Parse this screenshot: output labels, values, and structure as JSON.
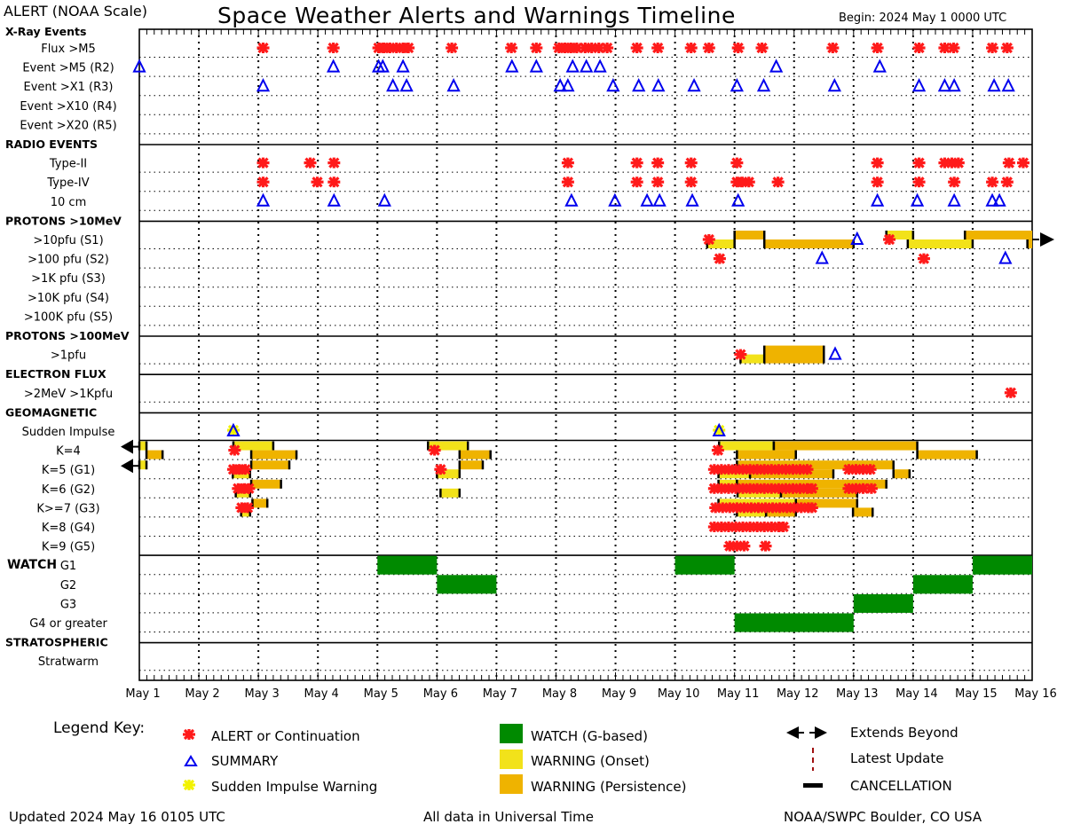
{
  "header": {
    "scale_label": "ALERT (NOAA Scale)",
    "title": "Space Weather Alerts and Warnings Timeline",
    "begin": "Begin: 2024 May 1 0000 UTC"
  },
  "footer": {
    "updated": "Updated 2024 May 16 0105 UTC",
    "timezone": "All data in Universal Time",
    "source": "NOAA/SWPC Boulder, CO USA"
  },
  "legend": {
    "title": "Legend Key:",
    "alert": "ALERT or Continuation",
    "summary": "SUMMARY",
    "si_warning": "Sudden Impulse Warning",
    "watch": "WATCH (G-based)",
    "onset": "WARNING (Onset)",
    "persistence": "WARNING (Persistence)",
    "extends": "Extends Beyond",
    "latest": "Latest Update",
    "cancel": "CANCELLATION"
  },
  "colors": {
    "alert": "#ff1a1a",
    "summary": "#0000ee",
    "si_warning": "#f2f200",
    "watch": "#008a00",
    "onset": "#f2e21a",
    "persistence": "#efb300",
    "latest": "#a01010"
  },
  "chart_data": {
    "type": "timeline",
    "title": "Space Weather Alerts and Warnings Timeline",
    "x_unit": "days since 2024 May 1 0000 UTC",
    "xlim": [
      0,
      15
    ],
    "x_tick_labels": [
      "May 1",
      "May 2",
      "May 3",
      "May 4",
      "May 5",
      "May 6",
      "May 7",
      "May 8",
      "May 9",
      "May 10",
      "May 11",
      "May 12",
      "May 13",
      "May 14",
      "May 15",
      "May 16"
    ],
    "grid": true,
    "watch_label": "WATCH",
    "top_header": "X-Ray Events",
    "rows": [
      {
        "label": "Flux >M5",
        "alerts": [
          2.08,
          3.26,
          4.02,
          4.11,
          4.21,
          4.32,
          4.43,
          4.52,
          5.25,
          6.25,
          6.67,
          7.05,
          7.15,
          7.25,
          7.35,
          7.49,
          7.6,
          7.72,
          7.86,
          8.36,
          8.71,
          9.27,
          9.57,
          10.06,
          10.46,
          11.65,
          12.4,
          13.1,
          13.53,
          13.68,
          14.33,
          14.58
        ]
      },
      {
        "label": "Event >M5 (R2)",
        "summaries": [
          0.0,
          3.26,
          4.02,
          4.09,
          4.43,
          6.26,
          6.67,
          7.28,
          7.51,
          7.74,
          10.7,
          12.44
        ]
      },
      {
        "label": "Event >X1 (R3)",
        "summaries": [
          2.08,
          4.26,
          4.49,
          5.28,
          7.07,
          7.2,
          7.96,
          8.39,
          8.72,
          9.32,
          10.04,
          10.49,
          11.68,
          13.1,
          13.53,
          13.69,
          14.36,
          14.6
        ]
      },
      {
        "label": "Event >X10 (R4)"
      },
      {
        "label": "Event >X20 (R5)"
      },
      {
        "label": "RADIO EVENTS",
        "header": true
      },
      {
        "label": "Type-II",
        "alerts": [
          2.08,
          2.87,
          3.27,
          7.2,
          8.36,
          8.71,
          9.27,
          10.04,
          12.4,
          13.1,
          13.53,
          13.65,
          13.76,
          14.61,
          14.85
        ]
      },
      {
        "label": "Type-IV",
        "alerts": [
          2.08,
          2.99,
          3.27,
          7.2,
          8.36,
          8.71,
          9.27,
          10.04,
          10.13,
          10.24,
          10.73,
          12.4,
          13.1,
          13.69,
          14.33,
          14.58
        ]
      },
      {
        "label": "10 cm",
        "summaries": [
          2.08,
          3.27,
          4.12,
          7.26,
          7.99,
          8.53,
          8.74,
          9.29,
          10.06,
          12.4,
          13.07,
          13.69,
          14.33,
          14.45
        ]
      },
      {
        "label": "PROTONS >10MeV",
        "header": true
      },
      {
        "label": ">10pfu (S1)",
        "alerts": [
          9.57,
          12.6
        ],
        "summaries": [
          12.06
        ],
        "bars": [
          [
            9.54,
            10.0,
            "onset",
            "lower"
          ],
          [
            10.0,
            10.5,
            "persistence",
            "upper"
          ],
          [
            10.5,
            12.0,
            "persistence",
            "lower"
          ],
          [
            12.55,
            13.0,
            "onset",
            "upper"
          ],
          [
            12.91,
            14.0,
            "onset",
            "lower"
          ],
          [
            13.87,
            15.0,
            "persistence",
            "upper"
          ],
          [
            14.92,
            15.0,
            "persistence",
            "lower"
          ]
        ],
        "extends_right": true
      },
      {
        "label": ">100 pfu (S2)",
        "alerts": [
          9.75,
          13.18
        ],
        "summaries": [
          11.47,
          14.55
        ]
      },
      {
        "label": ">1K pfu (S3)"
      },
      {
        "label": ">10K pfu (S4)"
      },
      {
        "label": ">100K pfu (S5)"
      },
      {
        "label": "PROTONS >100MeV",
        "header": true
      },
      {
        "label": ">1pfu",
        "alerts": [
          10.1
        ],
        "summaries": [
          11.69
        ],
        "bars": [
          [
            10.1,
            10.5,
            "onset",
            "lower"
          ],
          [
            10.5,
            11.5,
            "persistence",
            "full"
          ]
        ]
      },
      {
        "label": "ELECTRON FLUX",
        "header": true
      },
      {
        "label": ">2MeV >1Kpfu",
        "alerts": [
          14.64
        ]
      },
      {
        "label": "GEOMAGNETIC",
        "header": true
      },
      {
        "label": "Sudden Impulse",
        "si_warnings": [
          1.58,
          9.74
        ],
        "summaries": [
          1.58,
          9.74
        ]
      },
      {
        "label": "K=4",
        "alerts": [
          1.6,
          4.96,
          9.72
        ],
        "extends_left": true,
        "bars": [
          [
            0,
            0.12,
            "onset",
            "upper"
          ],
          [
            0.12,
            0.39,
            "persistence",
            "lower"
          ],
          [
            1.58,
            2.25,
            "onset",
            "upper"
          ],
          [
            1.88,
            2.64,
            "persistence",
            "lower"
          ],
          [
            4.85,
            5.52,
            "onset",
            "upper"
          ],
          [
            5.38,
            5.9,
            "persistence",
            "lower"
          ],
          [
            9.74,
            10.66,
            "onset",
            "upper"
          ],
          [
            10.66,
            13.07,
            "persistence",
            "upper"
          ],
          [
            10.04,
            11.03,
            "persistence",
            "lower"
          ],
          [
            13.07,
            14.07,
            "persistence",
            "lower"
          ]
        ]
      },
      {
        "label": "K=5 (G1)",
        "alerts": [
          1.58,
          1.68,
          1.78,
          5.06,
          9.66,
          9.78,
          9.9,
          10.02,
          10.14,
          10.26,
          10.38,
          10.5,
          10.62,
          10.74,
          10.86,
          10.98,
          11.1,
          11.22,
          11.92,
          12.04,
          12.16,
          12.28
        ],
        "extends_left": true,
        "bars": [
          [
            0,
            0.12,
            "onset",
            "upper"
          ],
          [
            1.88,
            2.52,
            "persistence",
            "upper"
          ],
          [
            1.57,
            1.86,
            "onset",
            "lower"
          ],
          [
            5.38,
            5.77,
            "persistence",
            "upper"
          ],
          [
            5.0,
            5.38,
            "onset",
            "lower"
          ],
          [
            10.04,
            12.67,
            "persistence",
            "upper"
          ],
          [
            9.73,
            10.26,
            "onset",
            "lower"
          ],
          [
            10.26,
            11.66,
            "persistence",
            "lower"
          ],
          [
            12.67,
            12.94,
            "persistence",
            "lower"
          ]
        ]
      },
      {
        "label": "K=6 (G2)",
        "alerts": [
          1.66,
          1.76,
          1.84,
          9.66,
          9.78,
          9.9,
          10.02,
          10.14,
          10.26,
          10.38,
          10.5,
          10.62,
          10.74,
          10.86,
          10.98,
          11.1,
          11.22,
          11.3,
          11.92,
          12.04,
          12.16,
          12.3
        ],
        "bars": [
          [
            1.88,
            2.38,
            "persistence",
            "upper"
          ],
          [
            1.62,
            1.86,
            "onset",
            "lower"
          ],
          [
            5.06,
            5.38,
            "onset",
            "lower"
          ],
          [
            9.73,
            10.04,
            "onset",
            "upper"
          ],
          [
            10.04,
            12.55,
            "persistence",
            "upper"
          ],
          [
            10.05,
            10.78,
            "onset",
            "lower"
          ],
          [
            10.78,
            12.06,
            "persistence",
            "lower"
          ]
        ]
      },
      {
        "label": "K>=7 (G3)",
        "alerts": [
          1.72,
          1.82,
          9.68,
          9.8,
          9.92,
          10.04,
          10.16,
          10.28,
          10.4,
          10.52,
          10.64,
          10.76,
          10.88,
          11.0,
          11.12,
          11.24,
          11.3
        ],
        "bars": [
          [
            1.9,
            2.15,
            "persistence",
            "upper"
          ],
          [
            1.71,
            1.86,
            "onset",
            "lower"
          ],
          [
            9.73,
            11.03,
            "onset",
            "upper"
          ],
          [
            11.03,
            12.06,
            "persistence",
            "upper"
          ],
          [
            10.04,
            10.53,
            "onset",
            "lower"
          ],
          [
            10.53,
            11.03,
            "persistence",
            "lower"
          ],
          [
            11.99,
            12.32,
            "persistence",
            "lower"
          ]
        ]
      },
      {
        "label": "K=8 (G4)",
        "alerts": [
          9.66,
          9.78,
          9.9,
          10.02,
          10.14,
          10.26,
          10.38,
          10.5,
          10.62,
          10.74,
          10.82
        ]
      },
      {
        "label": "K=9 (G5)",
        "alerts": [
          9.92,
          10.04,
          10.16,
          10.52
        ]
      },
      {
        "label": "G1",
        "watch": [
          [
            4,
            5
          ],
          [
            9,
            10
          ],
          [
            14,
            15
          ]
        ]
      },
      {
        "label": "G2",
        "watch": [
          [
            5,
            6
          ],
          [
            13,
            14
          ]
        ]
      },
      {
        "label": "G3",
        "watch": [
          [
            12,
            13
          ]
        ]
      },
      {
        "label": "G4 or greater",
        "watch": [
          [
            10,
            12
          ]
        ]
      },
      {
        "label": "STRATOSPHERIC",
        "header": true
      },
      {
        "label": "Stratwarm"
      }
    ]
  }
}
